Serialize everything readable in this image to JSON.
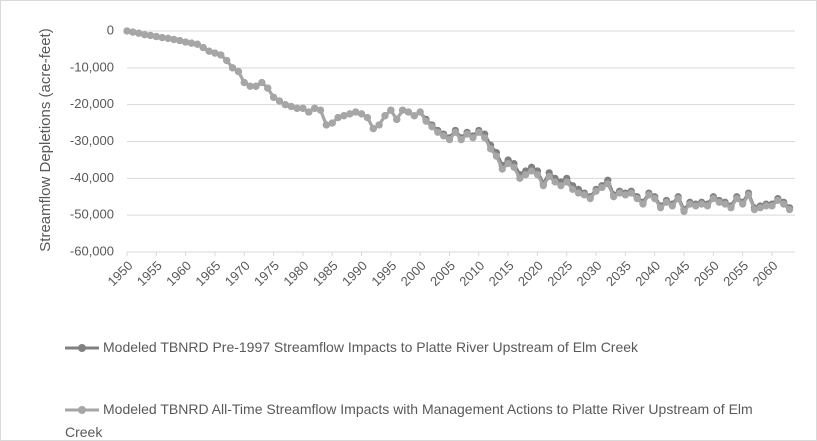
{
  "chart_data": {
    "type": "line",
    "y_label": "Streamflow Depletions (acre-feet)",
    "x": [
      1950,
      1951,
      1952,
      1953,
      1954,
      1955,
      1956,
      1957,
      1958,
      1959,
      1960,
      1961,
      1962,
      1963,
      1964,
      1965,
      1966,
      1967,
      1968,
      1969,
      1970,
      1971,
      1972,
      1973,
      1974,
      1975,
      1976,
      1977,
      1978,
      1979,
      1980,
      1981,
      1982,
      1983,
      1984,
      1985,
      1986,
      1987,
      1988,
      1989,
      1990,
      1991,
      1992,
      1993,
      1994,
      1995,
      1996,
      1997,
      1998,
      1999,
      2000,
      2001,
      2002,
      2003,
      2004,
      2005,
      2006,
      2007,
      2008,
      2009,
      2010,
      2011,
      2012,
      2013,
      2014,
      2015,
      2016,
      2017,
      2018,
      2019,
      2020,
      2021,
      2022,
      2023,
      2024,
      2025,
      2026,
      2027,
      2028,
      2029,
      2030,
      2031,
      2032,
      2033,
      2034,
      2035,
      2036,
      2037,
      2038,
      2039,
      2040,
      2041,
      2042,
      2043,
      2044,
      2045,
      2046,
      2047,
      2048,
      2049,
      2050,
      2051,
      2052,
      2053,
      2054,
      2055,
      2056,
      2057,
      2058,
      2059,
      2060,
      2061,
      2062,
      2063
    ],
    "series": [
      {
        "name": "Modeled TBNRD Pre-1997 Streamflow Impacts to Platte River Upstream of Elm Creek",
        "color": "#808080",
        "values": [
          0,
          -300,
          -600,
          -1000,
          -1200,
          -1500,
          -1800,
          -2000,
          -2300,
          -2600,
          -3000,
          -3300,
          -3600,
          -4500,
          -5500,
          -6000,
          -6500,
          -8000,
          -10000,
          -11000,
          -14000,
          -15000,
          -15000,
          -14000,
          -15500,
          -18000,
          -19000,
          -20000,
          -20500,
          -21000,
          -21000,
          -22000,
          -21000,
          -21500,
          -25500,
          -25000,
          -23500,
          -23000,
          -22500,
          -22000,
          -22500,
          -23500,
          -26500,
          -25500,
          -23000,
          -21500,
          -24000,
          -21500,
          -22000,
          -23000,
          -22000,
          -24000,
          -25500,
          -27000,
          -28000,
          -29000,
          -27000,
          -29000,
          -27500,
          -28500,
          -27000,
          -28000,
          -31000,
          -33000,
          -36500,
          -35000,
          -36000,
          -39000,
          -38000,
          -37000,
          -38000,
          -41500,
          -38500,
          -40000,
          -41000,
          -40000,
          -42000,
          -43000,
          -44000,
          -45000,
          -43000,
          -42000,
          -40500,
          -44500,
          -43500,
          -44000,
          -43500,
          -45000,
          -46500,
          -44000,
          -45000,
          -47500,
          -46000,
          -47000,
          -45000,
          -48500,
          -46500,
          -47000,
          -46500,
          -47000,
          -45000,
          -46000,
          -46500,
          -47500,
          -45000,
          -46500,
          -44000,
          -48000,
          -47500,
          -47000,
          -47000,
          -45500,
          -46500,
          -48000
        ]
      },
      {
        "name": "Modeled TBNRD All-Time Streamflow Impacts with Management Actions to Platte River Upstream of Elm Creek",
        "color": "#a6a6a6",
        "values": [
          0,
          -300,
          -600,
          -1000,
          -1200,
          -1500,
          -1800,
          -2000,
          -2300,
          -2600,
          -3000,
          -3300,
          -3600,
          -4500,
          -5500,
          -6000,
          -6500,
          -8000,
          -10000,
          -11000,
          -14000,
          -15000,
          -15000,
          -14000,
          -15500,
          -18000,
          -19000,
          -20000,
          -20500,
          -21000,
          -21000,
          -22000,
          -21000,
          -21500,
          -25500,
          -25000,
          -23500,
          -23000,
          -22500,
          -22000,
          -22500,
          -23500,
          -26500,
          -25500,
          -23000,
          -21500,
          -24000,
          -21500,
          -22000,
          -23000,
          -22000,
          -24500,
          -26000,
          -27500,
          -28500,
          -29500,
          -27500,
          -29500,
          -28000,
          -29000,
          -27500,
          -29000,
          -32000,
          -34000,
          -37500,
          -36000,
          -37000,
          -40000,
          -39000,
          -38000,
          -39000,
          -42000,
          -39500,
          -41000,
          -42000,
          -41000,
          -43000,
          -44000,
          -44500,
          -45500,
          -43500,
          -42500,
          -41500,
          -45000,
          -44000,
          -44500,
          -44000,
          -45500,
          -47000,
          -44500,
          -45500,
          -48000,
          -46500,
          -47500,
          -45500,
          -49000,
          -47000,
          -47500,
          -47000,
          -47500,
          -45500,
          -46500,
          -47000,
          -48000,
          -45500,
          -47000,
          -44500,
          -48500,
          -48000,
          -47500,
          -47500,
          -46000,
          -47000,
          -48500
        ]
      }
    ],
    "xlim": [
      1950,
      2060
    ],
    "xticks": [
      1950,
      1955,
      1960,
      1965,
      1970,
      1975,
      1980,
      1985,
      1990,
      1995,
      2000,
      2005,
      2010,
      2015,
      2020,
      2025,
      2030,
      2035,
      2040,
      2045,
      2050,
      2055,
      2060
    ],
    "ylim": [
      -60000,
      0
    ],
    "yticks": [
      0,
      {
        "value": -10000,
        "label": "-10,000"
      },
      {
        "value": -20000,
        "label": "-20,000"
      },
      {
        "value": -30000,
        "label": "-30,000"
      },
      {
        "value": -40000,
        "label": "-40,000"
      },
      {
        "value": -50000,
        "label": "-50,000"
      },
      {
        "value": -60000,
        "label": "-60,000"
      }
    ],
    "grid": true,
    "legend": "bottom"
  }
}
